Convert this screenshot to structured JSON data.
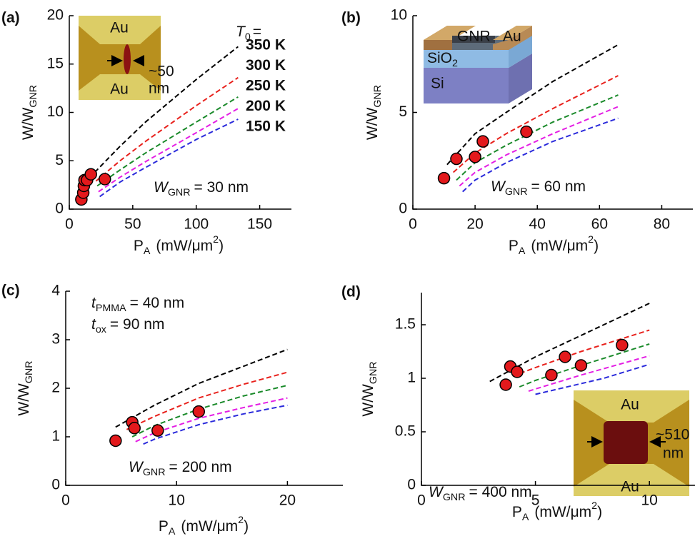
{
  "chart_data": [
    {
      "type": "line",
      "panel_label": "(a)",
      "xlim": [
        0,
        175
      ],
      "ylim": [
        0,
        20
      ],
      "xticks": [
        0,
        50,
        100,
        150
      ],
      "yticks": [
        0,
        5,
        10,
        15,
        20
      ],
      "xlabel": {
        "main": "P",
        "sub": "A",
        "unit": "(mW/μm",
        "sup": "2",
        "end": ")"
      },
      "ylabel": {
        "main": "W/W",
        "sub": "GNR"
      },
      "legend_title": {
        "symbol": "T",
        "sub": "0",
        "text": "="
      },
      "series": [
        {
          "name": "350 K",
          "color": "#000000",
          "x": [
            20,
            40,
            60,
            100,
            133
          ],
          "values": [
            3.8,
            6.5,
            9.0,
            13.4,
            16.8
          ]
        },
        {
          "name": "300 K",
          "color": "#e8211c",
          "x": [
            21,
            40,
            60,
            100,
            133
          ],
          "values": [
            2.9,
            5.0,
            7.0,
            10.7,
            13.6
          ]
        },
        {
          "name": "250 K",
          "color": "#1a8a2a",
          "x": [
            22,
            40,
            60,
            100,
            133
          ],
          "values": [
            2.4,
            4.05,
            5.8,
            9.0,
            11.6
          ]
        },
        {
          "name": "200 K",
          "color": "#e41ee4",
          "x": [
            23,
            40,
            60,
            100,
            133
          ],
          "values": [
            1.8,
            3.3,
            4.9,
            7.9,
            10.4
          ]
        },
        {
          "name": "150 K",
          "color": "#2b2bdb",
          "x": [
            24,
            40,
            60,
            100,
            133
          ],
          "values": [
            1.3,
            2.8,
            4.3,
            7.2,
            9.3
          ]
        }
      ],
      "points": {
        "color": "#e3191c",
        "x": [
          9.5,
          11,
          11.5,
          12,
          14,
          17,
          28
        ],
        "values": [
          1.0,
          1.7,
          2.4,
          3.0,
          3.0,
          3.6,
          3.1
        ]
      },
      "annotations": [
        {
          "symbol": "W",
          "sub": "GNR",
          "text": "= 30 nm"
        }
      ],
      "inset": [
        "Au",
        "Au",
        "~50",
        "nm"
      ]
    },
    {
      "type": "line",
      "panel_label": "(b)",
      "xlim": [
        0,
        90
      ],
      "ylim": [
        0,
        10
      ],
      "xticks": [
        0,
        20,
        40,
        60,
        80
      ],
      "yticks": [
        0,
        5,
        10
      ],
      "xlabel": {
        "main": "P",
        "sub": "A",
        "unit": "(mW/μm",
        "sup": "2",
        "end": ")"
      },
      "ylabel": {
        "main": "W/W",
        "sub": "GNR"
      },
      "series": [
        {
          "color": "#000000",
          "x": [
            11,
            20,
            30,
            45,
            66
          ],
          "values": [
            2.3,
            3.9,
            5.0,
            6.6,
            8.5
          ]
        },
        {
          "color": "#e8211c",
          "x": [
            13,
            20,
            30,
            45,
            66
          ],
          "values": [
            1.9,
            2.9,
            3.9,
            5.2,
            6.9
          ]
        },
        {
          "color": "#1a8a2a",
          "x": [
            14,
            20,
            30,
            45,
            66
          ],
          "values": [
            1.5,
            2.4,
            3.3,
            4.5,
            5.9
          ]
        },
        {
          "color": "#e41ee4",
          "x": [
            15,
            20,
            30,
            45,
            66
          ],
          "values": [
            1.2,
            1.9,
            2.8,
            3.9,
            5.3
          ]
        },
        {
          "color": "#2b2bdb",
          "x": [
            16,
            20,
            30,
            45,
            66
          ],
          "values": [
            0.9,
            1.5,
            2.4,
            3.5,
            4.7
          ]
        }
      ],
      "points": {
        "color": "#e3191c",
        "x": [
          10,
          14,
          20,
          22.5,
          36.5
        ],
        "values": [
          1.6,
          2.6,
          2.7,
          3.5,
          4.0
        ]
      },
      "annotations": [
        {
          "symbol": "W",
          "sub": "GNR",
          "text": "= 60 nm"
        }
      ],
      "inset": [
        "GNR",
        "Au",
        "SiO",
        "2",
        "Si"
      ]
    },
    {
      "type": "line",
      "panel_label": "(c)",
      "xlim": [
        0,
        25
      ],
      "ylim": [
        0,
        4
      ],
      "xticks": [
        0,
        10,
        20
      ],
      "yticks": [
        0,
        1,
        2,
        3,
        4
      ],
      "xlabel": {
        "main": "P",
        "sub": "A",
        "unit": "(mW/μm",
        "sup": "2",
        "end": ")"
      },
      "ylabel": {
        "main": "W/W",
        "sub": "GNR"
      },
      "series": [
        {
          "color": "#000000",
          "x": [
            4.5,
            8,
            12,
            16,
            20
          ],
          "values": [
            1.2,
            1.65,
            2.1,
            2.45,
            2.8
          ]
        },
        {
          "color": "#e8211c",
          "x": [
            5.5,
            8,
            12,
            16,
            20
          ],
          "values": [
            1.15,
            1.42,
            1.8,
            2.08,
            2.33
          ]
        },
        {
          "color": "#1a8a2a",
          "x": [
            6,
            8,
            12,
            16,
            20
          ],
          "values": [
            1.0,
            1.23,
            1.57,
            1.84,
            2.06
          ]
        },
        {
          "color": "#e41ee4",
          "x": [
            6.3,
            8,
            12,
            16,
            20
          ],
          "values": [
            0.9,
            1.08,
            1.38,
            1.6,
            1.8
          ]
        },
        {
          "color": "#2b2bdb",
          "x": [
            7,
            8,
            12,
            16,
            20
          ],
          "values": [
            0.85,
            0.95,
            1.25,
            1.47,
            1.65
          ]
        }
      ],
      "points": {
        "color": "#e3191c",
        "x": [
          4.5,
          6,
          6.2,
          8.3,
          12
        ],
        "values": [
          0.92,
          1.3,
          1.18,
          1.13,
          1.52
        ]
      },
      "annotations": [
        {
          "symbol": "t",
          "sub": "PMMA",
          "text": "= 40 nm"
        },
        {
          "symbol": "t",
          "sub": "ox",
          "text": "= 90 nm"
        },
        {
          "symbol": "W",
          "sub": "GNR",
          "text": "= 200 nm"
        }
      ]
    },
    {
      "type": "line",
      "panel_label": "(d)",
      "xlim": [
        0,
        12
      ],
      "ylim": [
        0,
        1.8
      ],
      "xticks": [
        0,
        5,
        10
      ],
      "yticks": [
        0,
        0.5,
        1,
        1.5
      ],
      "xlabel": {
        "main": "P",
        "sub": "A",
        "unit": "(mW/μm",
        "sup": "2",
        "end": ")"
      },
      "ylabel": {
        "main": "W/W",
        "sub": "GNR"
      },
      "series": [
        {
          "color": "#000000",
          "x": [
            3,
            5,
            7,
            10
          ],
          "values": [
            0.97,
            1.2,
            1.4,
            1.7
          ]
        },
        {
          "color": "#e8211c",
          "x": [
            4,
            5,
            7,
            10
          ],
          "values": [
            1.02,
            1.1,
            1.25,
            1.45
          ]
        },
        {
          "color": "#1a8a2a",
          "x": [
            4.3,
            5,
            7,
            10
          ],
          "values": [
            0.92,
            0.98,
            1.12,
            1.32
          ]
        },
        {
          "color": "#e41ee4",
          "x": [
            4.7,
            5,
            7,
            10
          ],
          "values": [
            0.88,
            0.9,
            1.03,
            1.21
          ]
        },
        {
          "color": "#2b2bdb",
          "x": [
            5,
            6,
            8,
            10
          ],
          "values": [
            0.85,
            0.9,
            1.0,
            1.13
          ]
        }
      ],
      "points": {
        "color": "#e3191c",
        "x": [
          3.7,
          3.9,
          4.2,
          5.7,
          6.3,
          7,
          8.8
        ],
        "values": [
          0.94,
          1.11,
          1.06,
          1.03,
          1.2,
          1.12,
          1.31
        ]
      },
      "annotations": [
        {
          "symbol": "W",
          "sub": "GNR",
          "text": "= 400 nm"
        }
      ],
      "inset": [
        "Au",
        "Au",
        "~510",
        "nm"
      ]
    }
  ]
}
